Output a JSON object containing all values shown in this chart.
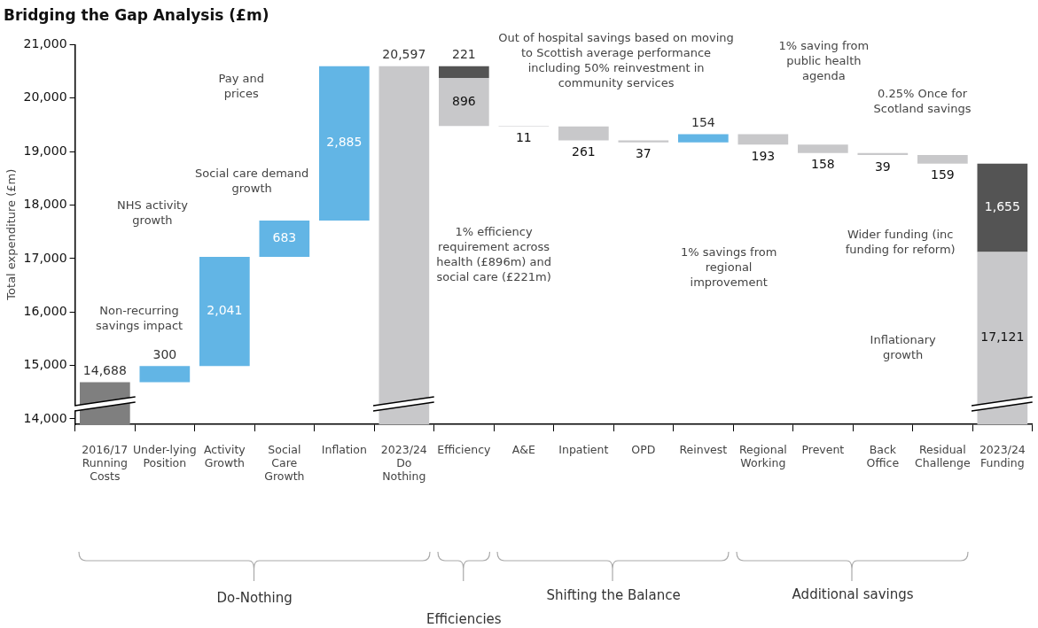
{
  "chart_data": {
    "type": "bar",
    "title": "Bridging the Gap Analysis (£m)",
    "ylabel": "Total expenditure (£m)",
    "categories": [
      "2016/17 Running Costs",
      "Under-lying Position",
      "Activity Growth",
      "Social Care Growth",
      "Inflation",
      "2023/24 Do Nothing",
      "Efficiency",
      "A&E",
      "Inpatient",
      "OPD",
      "Reinvest",
      "Regional Working",
      "Prevent",
      "Back Office",
      "Residual Challenge",
      "2023/24 Funding"
    ],
    "series": [
      {
        "base": [
          0,
          14688,
          14988,
          17029,
          17712,
          0,
          19480,
          19469,
          19208,
          19171,
          19171,
          19132,
          18974,
          18935,
          18776,
          0
        ],
        "values": [
          14688,
          300,
          2041,
          683,
          2885,
          20597,
          896,
          11,
          261,
          37,
          154,
          193,
          158,
          39,
          159,
          17121
        ],
        "colors": [
          "#7f7f7f",
          "#62b5e5",
          "#62b5e5",
          "#62b5e5",
          "#62b5e5",
          "#c8c8ca",
          "#c8c8ca",
          "#c8c8ca",
          "#c8c8ca",
          "#c8c8ca",
          "#62b5e5",
          "#c8c8ca",
          "#c8c8ca",
          "#c8c8ca",
          "#c8c8ca",
          "#c8c8ca"
        ],
        "value_labels": [
          "14,688",
          "300",
          "2,041",
          "683",
          "2,885",
          "20,597",
          "896",
          "11",
          "261",
          "37",
          "154",
          "193",
          "158",
          "39",
          "159",
          "17,121"
        ]
      },
      {
        "base": [
          null,
          null,
          null,
          null,
          null,
          null,
          20376,
          null,
          null,
          null,
          null,
          null,
          null,
          null,
          null,
          17121
        ],
        "color": "#545454",
        "values": [
          null,
          null,
          null,
          null,
          null,
          null,
          221,
          null,
          null,
          null,
          null,
          null,
          null,
          null,
          null,
          1655
        ],
        "value_labels": [
          null,
          null,
          null,
          null,
          null,
          null,
          "221",
          null,
          null,
          null,
          null,
          null,
          null,
          null,
          null,
          "1,655"
        ]
      }
    ],
    "ylim": [
      13900,
      21000
    ],
    "yticks": [
      {
        "value": 14000,
        "label": "14,000"
      },
      {
        "value": 15000,
        "label": "15,000"
      },
      {
        "value": 16000,
        "label": "16,000"
      },
      {
        "value": 17000,
        "label": "17,000"
      },
      {
        "value": 18000,
        "label": "18,000"
      },
      {
        "value": 19000,
        "label": "19,000"
      },
      {
        "value": 20000,
        "label": "20,000"
      },
      {
        "value": 21000,
        "label": "21,000"
      }
    ],
    "grid": false,
    "legend": false,
    "annotations": [
      "Non-recurring savings impact",
      "NHS activity growth",
      "Social care demand growth",
      "Pay and prices",
      "1% efficiency requirement across health (£896m) and social care (£221m)",
      "Out of hospital savings based on moving to Scottish average performance including 50% reinvestment in community services",
      "1% savings from regional improvement",
      "1% saving from public health agenda",
      "0.25% Once for Scotland savings",
      "Wider funding (inc funding for reform)",
      "Inflationary growth",
      "Do-Nothing",
      "Shifting the Balance",
      "Additional savings",
      "Efficiencies"
    ]
  }
}
